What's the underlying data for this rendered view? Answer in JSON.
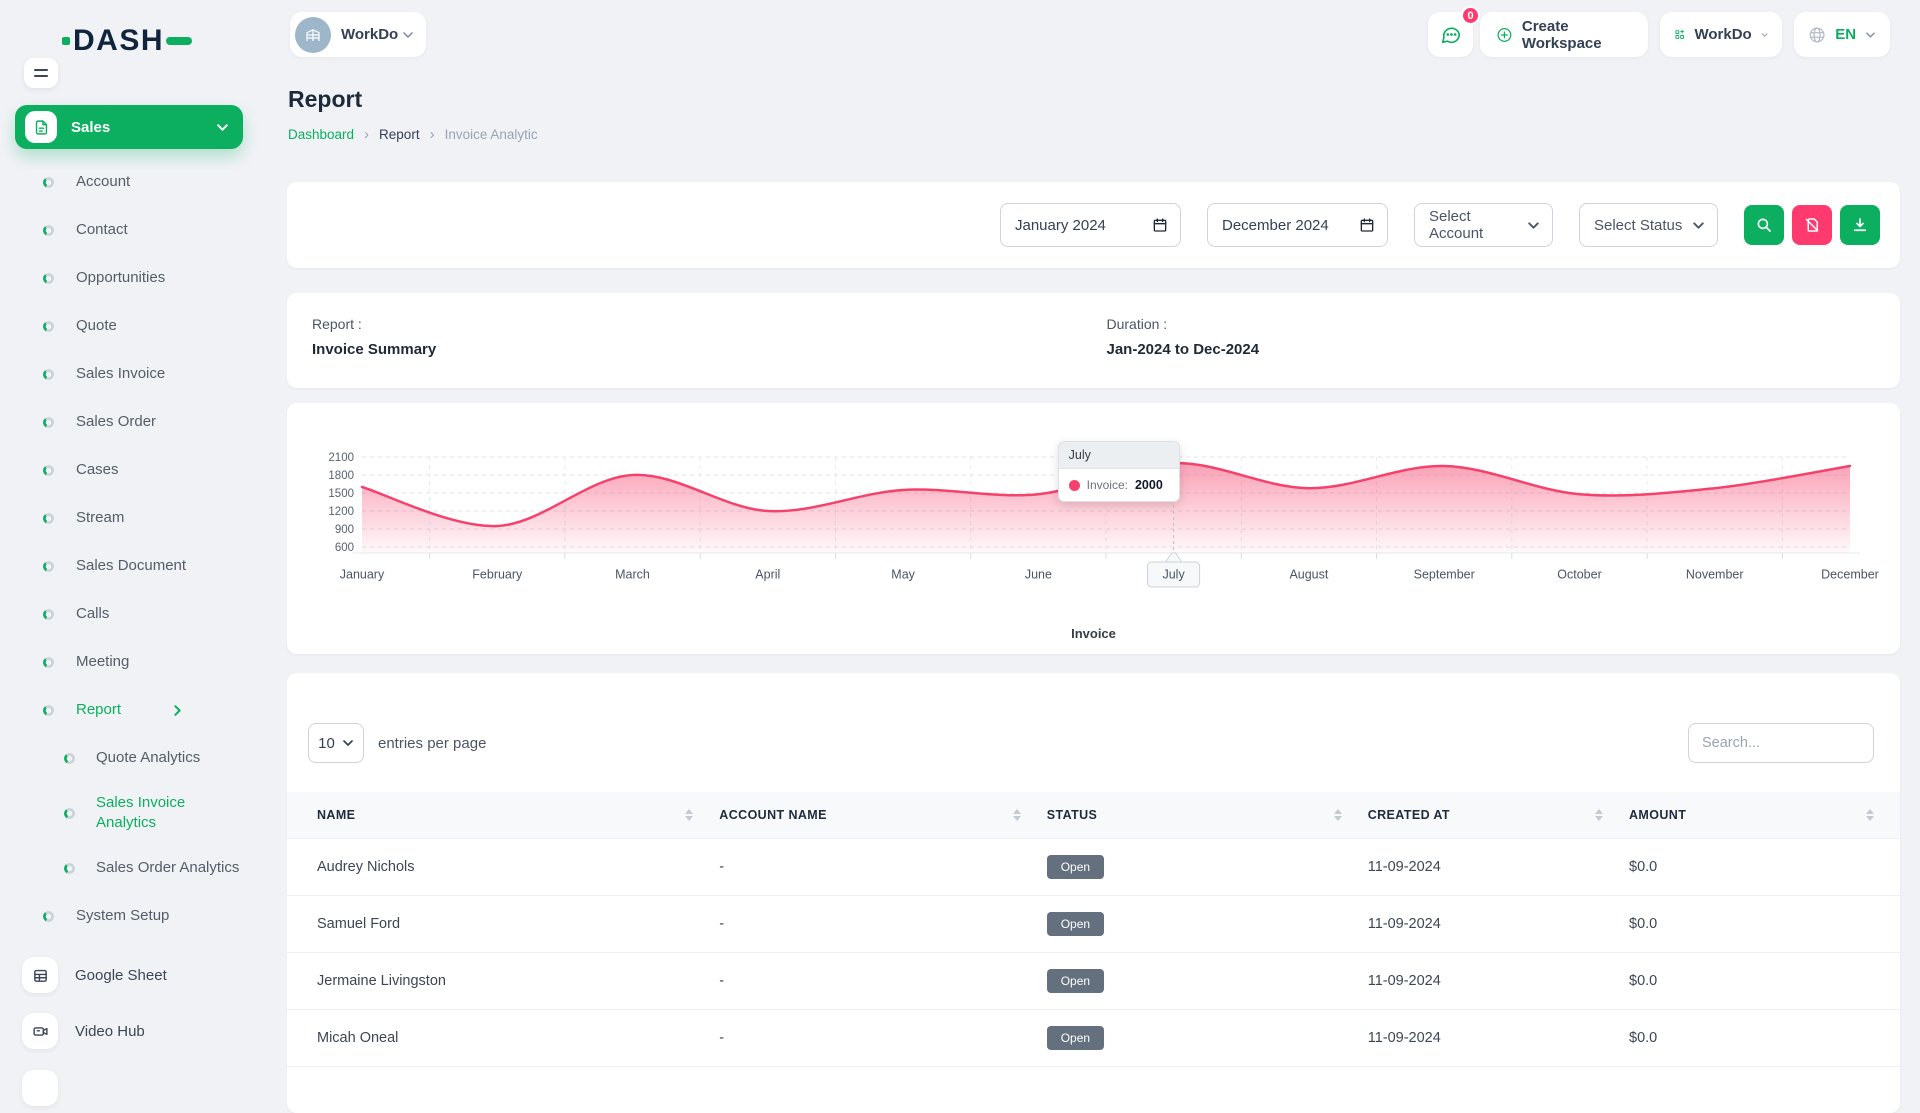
{
  "brand": {
    "name": "DASH"
  },
  "workspace": {
    "name": "WorkDo"
  },
  "topbar": {
    "notification_count": "0",
    "create_workspace": "Create Workspace",
    "workspace_menu": "WorkDo",
    "language": "EN"
  },
  "sidebar": {
    "section": {
      "label": "Sales"
    },
    "menu": [
      {
        "label": "Account"
      },
      {
        "label": "Contact"
      },
      {
        "label": "Opportunities"
      },
      {
        "label": "Quote"
      },
      {
        "label": "Sales Invoice"
      },
      {
        "label": "Sales Order"
      },
      {
        "label": "Cases"
      },
      {
        "label": "Stream"
      },
      {
        "label": "Sales Document"
      },
      {
        "label": "Calls"
      },
      {
        "label": "Meeting"
      },
      {
        "label": "Report",
        "active": true,
        "has_children": true
      },
      {
        "label": "Quote Analytics",
        "child": true
      },
      {
        "label": "Sales Invoice Analytics",
        "child": true,
        "active": true,
        "two_line": true
      },
      {
        "label": "Sales Order Analytics",
        "child": true
      },
      {
        "label": "System Setup"
      }
    ],
    "shortcuts": [
      {
        "label": "Google Sheet",
        "icon": "sheet-icon"
      },
      {
        "label": "Video Hub",
        "icon": "video-icon"
      }
    ]
  },
  "page": {
    "title": "Report",
    "breadcrumb": [
      "Dashboard",
      "Report",
      "Invoice Analytic"
    ]
  },
  "filters": {
    "from_date": "January 2024",
    "to_date": "December 2024",
    "account_placeholder": "Select Account",
    "status_placeholder": "Select Status"
  },
  "summary": {
    "report_label": "Report :",
    "report_value": "Invoice Summary",
    "duration_label": "Duration :",
    "duration_value": "Jan-2024 to Dec-2024"
  },
  "chart_data": {
    "type": "area",
    "title": "Invoice Summary",
    "x": [
      "January",
      "February",
      "March",
      "April",
      "May",
      "June",
      "July",
      "August",
      "September",
      "October",
      "November",
      "December"
    ],
    "series": [
      {
        "name": "Invoice",
        "values": [
          1600,
          950,
          1800,
          1200,
          1550,
          1480,
          2000,
          1580,
          1950,
          1480,
          1580,
          1950
        ]
      }
    ],
    "yticks": [
      2100,
      1800,
      1500,
      1200,
      900,
      600
    ],
    "ylim": [
      600,
      2100
    ],
    "grid": "dashed",
    "legend": "Invoice",
    "legend_position": "bottom",
    "colors": {
      "line": "#F5426C"
    },
    "tooltip": {
      "title": "July",
      "series_label": "Invoice:",
      "value": "2000",
      "month_index": 6
    },
    "highlighted_month_index": 6
  },
  "table": {
    "entries_value": "10",
    "entries_label": "entries per page",
    "search_placeholder": "Search...",
    "columns": [
      "NAME",
      "ACCOUNT NAME",
      "STATUS",
      "CREATED AT",
      "AMOUNT"
    ],
    "rows": [
      {
        "name": "Audrey Nichols",
        "account": "-",
        "status": "Open",
        "created_at": "11-09-2024",
        "amount": "$0.0"
      },
      {
        "name": "Samuel Ford",
        "account": "-",
        "status": "Open",
        "created_at": "11-09-2024",
        "amount": "$0.0"
      },
      {
        "name": "Jermaine Livingston",
        "account": "-",
        "status": "Open",
        "created_at": "11-09-2024",
        "amount": "$0.0"
      },
      {
        "name": "Micah Oneal",
        "account": "-",
        "status": "Open",
        "created_at": "11-09-2024",
        "amount": "$0.0"
      }
    ]
  },
  "colors": {
    "accent": "#0CAF60",
    "pink": "#FF3A6E",
    "chart_line": "#F5426C",
    "badge_bg": "#64707D"
  }
}
